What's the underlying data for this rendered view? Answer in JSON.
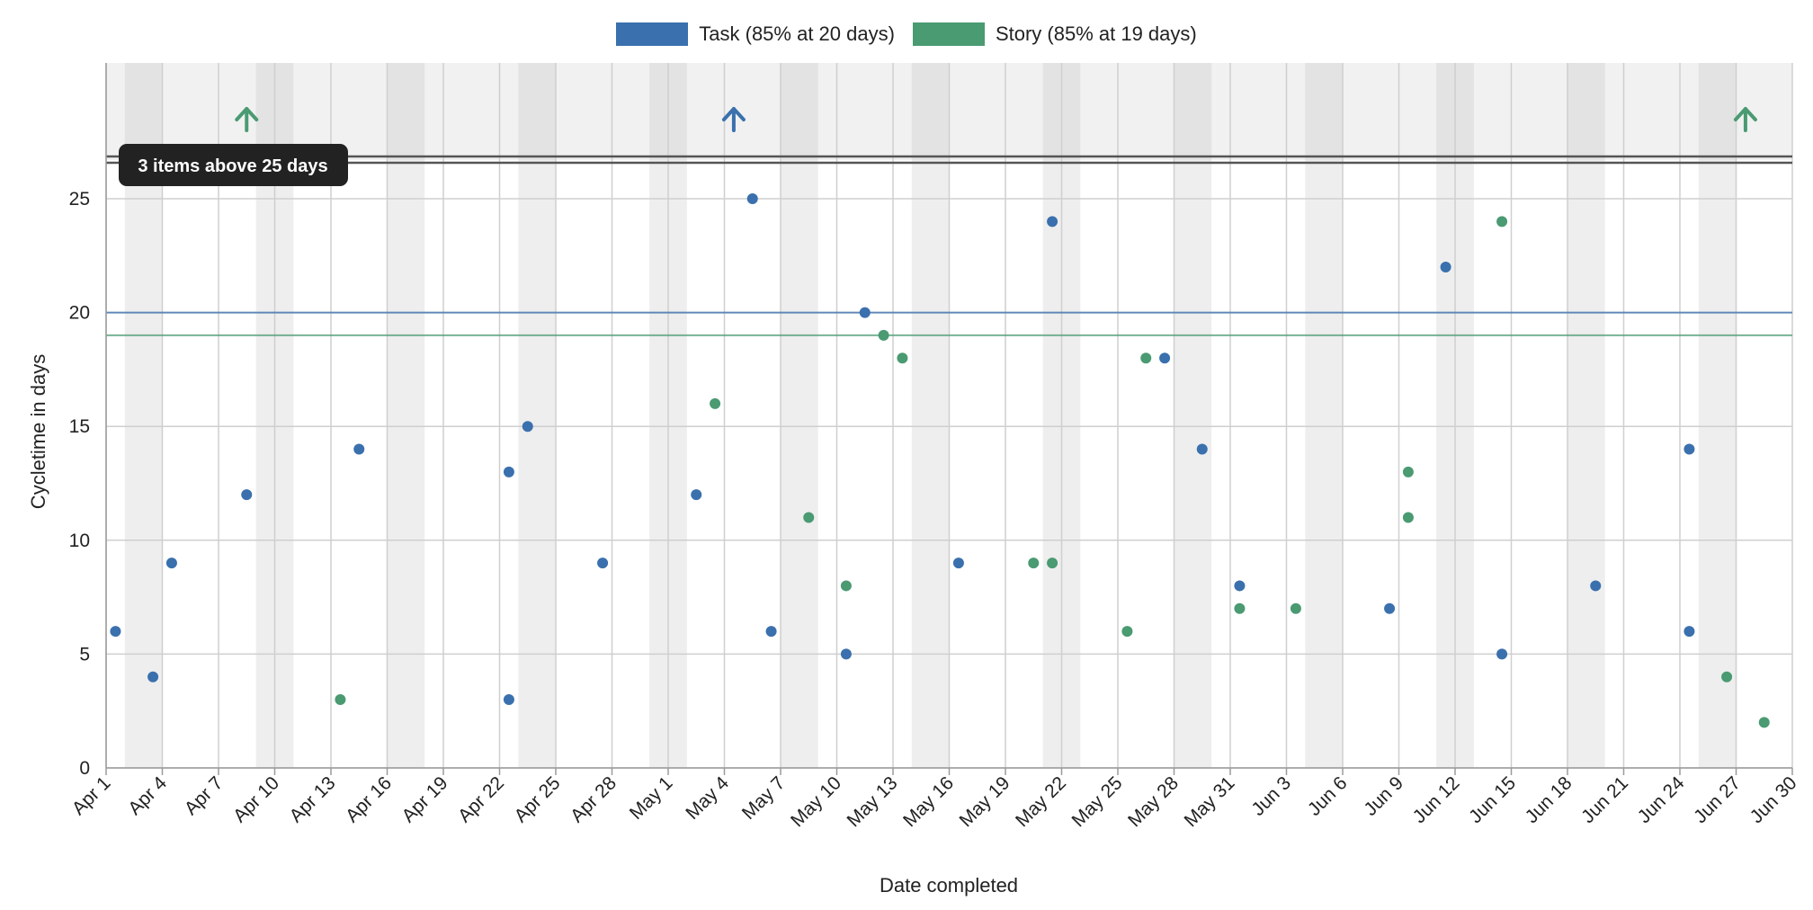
{
  "chart_data": {
    "type": "scatter",
    "title": "",
    "xlabel": "Date completed",
    "ylabel": "Cycletime in days",
    "x_axis": {
      "type": "date",
      "range": [
        "2016-04-01",
        "2016-06-30"
      ],
      "tick_labels": [
        "Apr 1",
        "Apr 4",
        "Apr 7",
        "Apr 10",
        "Apr 13",
        "Apr 16",
        "Apr 19",
        "Apr 22",
        "Apr 25",
        "Apr 28",
        "May 1",
        "May 4",
        "May 7",
        "May 10",
        "May 13",
        "May 16",
        "May 19",
        "May 22",
        "May 25",
        "May 28",
        "May 31",
        "Jun 3",
        "Jun 6",
        "Jun 9",
        "Jun 12",
        "Jun 15",
        "Jun 18",
        "Jun 21",
        "Jun 24",
        "Jun 27",
        "Jun 30"
      ]
    },
    "y_axis": {
      "range": [
        0,
        25
      ],
      "ticks": [
        0,
        5,
        10,
        15,
        20,
        25
      ]
    },
    "grid": true,
    "weekend_shading": true,
    "legend_position": "top-center",
    "series": [
      {
        "name": "Task (85% at 20 days)",
        "color": "#3a70ad",
        "percentile_85": 20,
        "points": [
          [
            "2016-04-01",
            6
          ],
          [
            "2016-04-03",
            4
          ],
          [
            "2016-04-04",
            9
          ],
          [
            "2016-04-08",
            12
          ],
          [
            "2016-04-14",
            14
          ],
          [
            "2016-04-22",
            13
          ],
          [
            "2016-04-22",
            3
          ],
          [
            "2016-04-23",
            15
          ],
          [
            "2016-04-27",
            9
          ],
          [
            "2016-05-02",
            12
          ],
          [
            "2016-05-05",
            25
          ],
          [
            "2016-05-06",
            6
          ],
          [
            "2016-05-10",
            5
          ],
          [
            "2016-05-11",
            20
          ],
          [
            "2016-05-16",
            9
          ],
          [
            "2016-05-21",
            24
          ],
          [
            "2016-05-27",
            18
          ],
          [
            "2016-05-29",
            14
          ],
          [
            "2016-05-31",
            8
          ],
          [
            "2016-06-08",
            7
          ],
          [
            "2016-06-11",
            22
          ],
          [
            "2016-06-14",
            5
          ],
          [
            "2016-06-19",
            8
          ],
          [
            "2016-06-24",
            14
          ],
          [
            "2016-06-24",
            6
          ]
        ]
      },
      {
        "name": "Story (85% at 19 days)",
        "color": "#4a9a72",
        "percentile_85": 19,
        "points": [
          [
            "2016-04-13",
            3
          ],
          [
            "2016-05-03",
            16
          ],
          [
            "2016-05-08",
            11
          ],
          [
            "2016-05-10",
            8
          ],
          [
            "2016-05-12",
            19
          ],
          [
            "2016-05-13",
            18
          ],
          [
            "2016-05-20",
            9
          ],
          [
            "2016-05-21",
            9
          ],
          [
            "2016-05-25",
            6
          ],
          [
            "2016-05-26",
            18
          ],
          [
            "2016-05-31",
            7
          ],
          [
            "2016-06-03",
            7
          ],
          [
            "2016-06-09",
            13
          ],
          [
            "2016-06-09",
            11
          ],
          [
            "2016-06-14",
            24
          ],
          [
            "2016-06-26",
            4
          ],
          [
            "2016-06-28",
            2
          ]
        ]
      }
    ],
    "overflow_markers": [
      {
        "date": "2016-04-08",
        "series": "Story"
      },
      {
        "date": "2016-05-04",
        "series": "Task"
      },
      {
        "date": "2016-06-27",
        "series": "Story"
      }
    ],
    "threshold_label": "3 items above 25 days",
    "threshold_value": 25
  },
  "colors": {
    "task": "#3a70ad",
    "story": "#4a9a72"
  }
}
